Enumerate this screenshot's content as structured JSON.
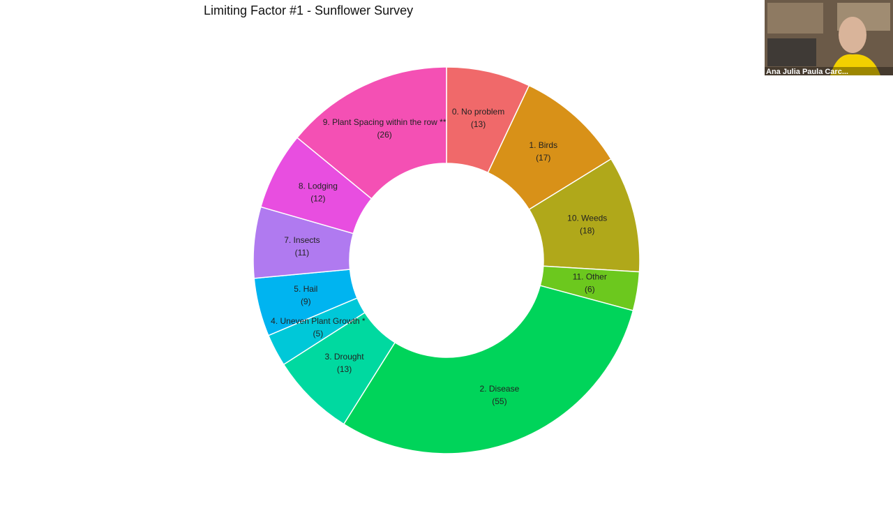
{
  "chart_data": {
    "type": "pie",
    "title": "Limiting Factor #1 - Sunflower Survey",
    "categories": [
      "0. No problem",
      "1. Birds",
      "10. Weeds",
      "11. Other",
      "2. Disease",
      "3. Drought",
      "4. Uneven Plant Growth *",
      "5. Hail",
      "7. Insects",
      "8. Lodging",
      "9. Plant Spacing within the row **"
    ],
    "values": [
      13,
      17,
      18,
      6,
      55,
      13,
      5,
      9,
      11,
      12,
      26
    ],
    "value_labels": [
      "(13)",
      "(17)",
      "(18)",
      "(6)",
      "(55)",
      "(13)",
      "(5)",
      "(9)",
      "(11)",
      "(12)",
      "(26)"
    ],
    "colors": [
      "#f0696a",
      "#d89118",
      "#b0a81a",
      "#6cc81e",
      "#00d45a",
      "#00d9a0",
      "#00c8d8",
      "#00b4f0",
      "#b07af0",
      "#e84ee0",
      "#f450b4"
    ]
  },
  "participant": {
    "name": "Ana Julia Paula Carc..."
  }
}
